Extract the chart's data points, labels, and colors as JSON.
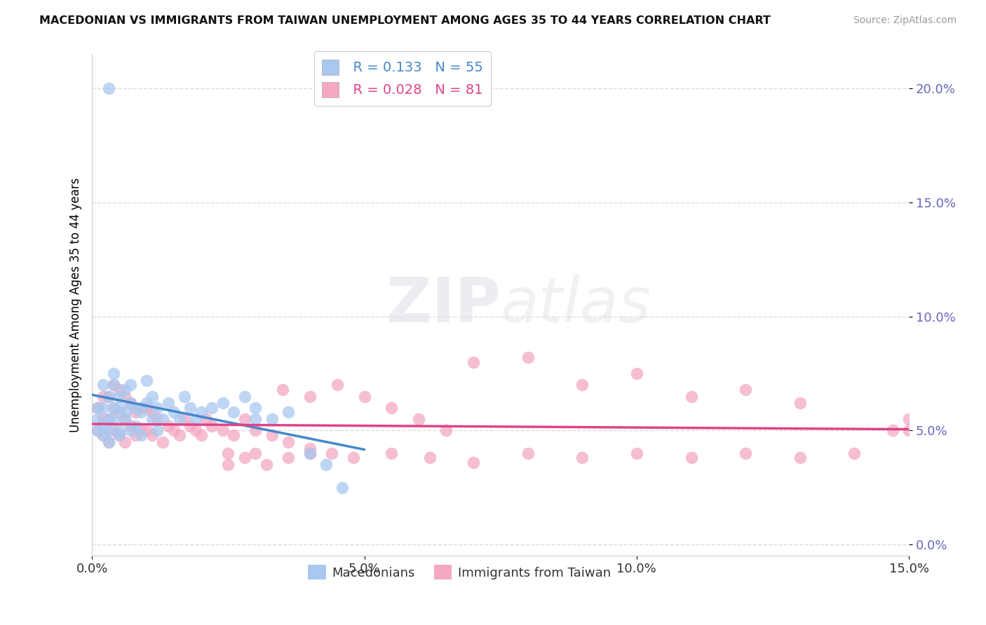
{
  "title": "MACEDONIAN VS IMMIGRANTS FROM TAIWAN UNEMPLOYMENT AMONG AGES 35 TO 44 YEARS CORRELATION CHART",
  "source": "Source: ZipAtlas.com",
  "ylabel": "Unemployment Among Ages 35 to 44 years",
  "xlim": [
    0.0,
    0.15
  ],
  "ylim": [
    -0.005,
    0.215
  ],
  "xticks": [
    0.0,
    0.05,
    0.1,
    0.15
  ],
  "xtick_labels": [
    "0.0%",
    "5.0%",
    "10.0%",
    "15.0%"
  ],
  "yticks": [
    0.0,
    0.05,
    0.1,
    0.15,
    0.2
  ],
  "ytick_labels": [
    "0.0%",
    "5.0%",
    "10.0%",
    "15.0%",
    "20.0%"
  ],
  "macedonian_R": 0.133,
  "macedonian_N": 55,
  "taiwan_R": 0.028,
  "taiwan_N": 81,
  "macedonian_color": "#a8c8f0",
  "taiwan_color": "#f4a8c4",
  "macedonian_line_color": "#4488cc",
  "taiwan_line_color": "#dd4488",
  "legend_label_1": "Macedonians",
  "legend_label_2": "Immigrants from Taiwan",
  "watermark_zip": "ZIP",
  "watermark_atlas": "atlas",
  "macedonian_x": [
    0.001,
    0.001,
    0.001,
    0.002,
    0.002,
    0.002,
    0.002,
    0.003,
    0.003,
    0.003,
    0.003,
    0.003,
    0.004,
    0.004,
    0.004,
    0.004,
    0.005,
    0.005,
    0.005,
    0.005,
    0.006,
    0.006,
    0.006,
    0.007,
    0.007,
    0.007,
    0.008,
    0.008,
    0.009,
    0.009,
    0.01,
    0.01,
    0.011,
    0.011,
    0.012,
    0.012,
    0.013,
    0.014,
    0.015,
    0.016,
    0.017,
    0.018,
    0.019,
    0.02,
    0.022,
    0.024,
    0.026,
    0.028,
    0.03,
    0.033,
    0.036,
    0.04,
    0.043,
    0.046,
    0.03
  ],
  "macedonian_y": [
    0.05,
    0.06,
    0.055,
    0.048,
    0.052,
    0.06,
    0.07,
    0.05,
    0.045,
    0.055,
    0.065,
    0.2,
    0.055,
    0.06,
    0.07,
    0.075,
    0.05,
    0.06,
    0.048,
    0.065,
    0.058,
    0.068,
    0.055,
    0.062,
    0.05,
    0.07,
    0.052,
    0.06,
    0.048,
    0.058,
    0.062,
    0.072,
    0.055,
    0.065,
    0.05,
    0.06,
    0.055,
    0.062,
    0.058,
    0.055,
    0.065,
    0.06,
    0.055,
    0.058,
    0.06,
    0.062,
    0.058,
    0.065,
    0.06,
    0.055,
    0.058,
    0.04,
    0.035,
    0.025,
    0.055
  ],
  "taiwan_x": [
    0.001,
    0.001,
    0.002,
    0.002,
    0.002,
    0.003,
    0.003,
    0.003,
    0.004,
    0.004,
    0.004,
    0.005,
    0.005,
    0.005,
    0.006,
    0.006,
    0.006,
    0.007,
    0.007,
    0.008,
    0.008,
    0.009,
    0.009,
    0.01,
    0.01,
    0.011,
    0.011,
    0.012,
    0.013,
    0.014,
    0.015,
    0.016,
    0.017,
    0.018,
    0.019,
    0.02,
    0.021,
    0.022,
    0.024,
    0.026,
    0.028,
    0.03,
    0.033,
    0.036,
    0.04,
    0.044,
    0.048,
    0.055,
    0.062,
    0.07,
    0.08,
    0.09,
    0.1,
    0.11,
    0.12,
    0.13,
    0.14,
    0.147,
    0.15,
    0.15,
    0.07,
    0.08,
    0.09,
    0.1,
    0.11,
    0.12,
    0.13,
    0.035,
    0.04,
    0.045,
    0.05,
    0.055,
    0.06,
    0.065,
    0.025,
    0.025,
    0.028,
    0.03,
    0.032,
    0.036,
    0.04
  ],
  "taiwan_y": [
    0.05,
    0.06,
    0.048,
    0.055,
    0.065,
    0.045,
    0.055,
    0.065,
    0.05,
    0.06,
    0.07,
    0.048,
    0.058,
    0.068,
    0.045,
    0.055,
    0.065,
    0.052,
    0.062,
    0.048,
    0.058,
    0.05,
    0.06,
    0.05,
    0.06,
    0.048,
    0.058,
    0.055,
    0.045,
    0.052,
    0.05,
    0.048,
    0.055,
    0.052,
    0.05,
    0.048,
    0.055,
    0.052,
    0.05,
    0.048,
    0.055,
    0.05,
    0.048,
    0.045,
    0.042,
    0.04,
    0.038,
    0.04,
    0.038,
    0.036,
    0.04,
    0.038,
    0.04,
    0.038,
    0.04,
    0.038,
    0.04,
    0.05,
    0.055,
    0.05,
    0.08,
    0.082,
    0.07,
    0.075,
    0.065,
    0.068,
    0.062,
    0.068,
    0.065,
    0.07,
    0.065,
    0.06,
    0.055,
    0.05,
    0.04,
    0.035,
    0.038,
    0.04,
    0.035,
    0.038,
    0.04
  ],
  "grid_color": "#dddddd",
  "ytick_color": "#6666bb",
  "xtick_color": "#333333"
}
